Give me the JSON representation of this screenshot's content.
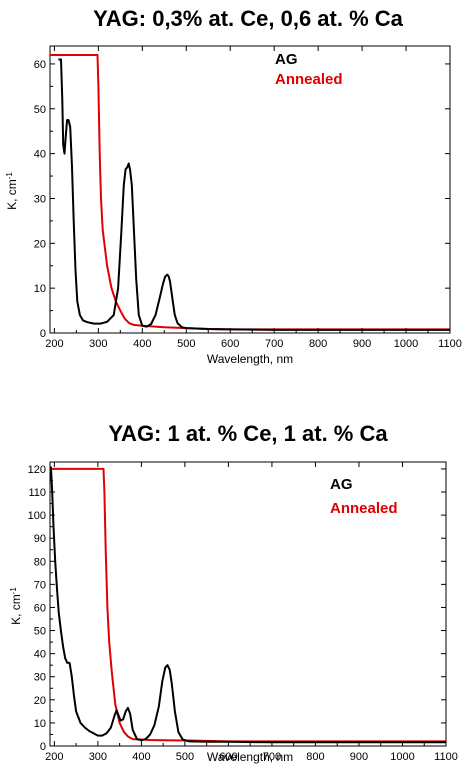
{
  "chart_data": [
    {
      "type": "line",
      "title": "YAG: 0,3% at. Ce, 0,6 at. % Ca",
      "xlabel": "Wavelength, nm",
      "ylabel_main": "K, cm",
      "ylabel_sup": "-1",
      "xlim": [
        190,
        1100
      ],
      "ylim": [
        0,
        64
      ],
      "xticks": [
        200,
        300,
        400,
        500,
        600,
        700,
        800,
        900,
        1000,
        1100
      ],
      "yticks": [
        0,
        10,
        20,
        30,
        40,
        50,
        60
      ],
      "legend_position": "top-right",
      "series": [
        {
          "name": "AG",
          "color": "#000000",
          "x": [
            209,
            212,
            215,
            218,
            220,
            223,
            226,
            229,
            232,
            236,
            240,
            244,
            248,
            252,
            258,
            265,
            275,
            290,
            305,
            320,
            335,
            345,
            352,
            358,
            362,
            366,
            369,
            372,
            376,
            380,
            386,
            392,
            400,
            410,
            420,
            430,
            440,
            447,
            452,
            457,
            460,
            463,
            468,
            474,
            480,
            490,
            500,
            550,
            600,
            700,
            800,
            900,
            1000,
            1100
          ],
          "y": [
            61,
            61,
            61,
            52,
            42,
            40,
            44,
            47.5,
            47.5,
            46,
            37,
            25,
            14,
            7,
            4,
            2.8,
            2.4,
            2.1,
            2.1,
            2.5,
            4,
            10,
            22,
            33,
            36.5,
            37,
            37.8,
            36.5,
            33,
            25,
            12,
            4,
            1.6,
            1.4,
            2,
            4,
            8,
            11,
            12.6,
            13,
            12.6,
            11.5,
            8,
            4,
            2.2,
            1.3,
            1.1,
            0.9,
            0.8,
            0.7,
            0.7,
            0.7,
            0.7,
            0.7
          ]
        },
        {
          "name": "Annealed",
          "color": "#e00000",
          "x": [
            190,
            298,
            300,
            303,
            306,
            310,
            315,
            320,
            330,
            340,
            350,
            360,
            370,
            380,
            400,
            450,
            500,
            550,
            600,
            700,
            800,
            900,
            1000,
            1100
          ],
          "y": [
            62,
            62,
            55,
            40,
            30,
            23,
            19,
            15,
            10,
            7,
            5,
            3.2,
            2.2,
            1.8,
            1.6,
            1.3,
            1.1,
            0.9,
            0.8,
            0.8,
            0.8,
            0.8,
            0.8,
            0.8
          ]
        }
      ]
    },
    {
      "type": "line",
      "title": "YAG: 1 at. % Ce, 1 at. % Ca",
      "xlabel": "Wavelength, nm",
      "ylabel_main": "K, cm",
      "ylabel_sup": "-1",
      "xlim": [
        190,
        1100
      ],
      "ylim": [
        0,
        123
      ],
      "xticks": [
        200,
        300,
        400,
        500,
        600,
        700,
        800,
        900,
        1000,
        1100
      ],
      "yticks": [
        0,
        10,
        20,
        30,
        40,
        50,
        60,
        70,
        80,
        90,
        100,
        110,
        120
      ],
      "legend_position": "top-right",
      "series": [
        {
          "name": "AG",
          "color": "#000000",
          "x": [
            192,
            195,
            198,
            202,
            206,
            210,
            215,
            220,
            225,
            230,
            235,
            240,
            245,
            250,
            260,
            270,
            280,
            290,
            300,
            310,
            320,
            330,
            338,
            343,
            348,
            352,
            358,
            364,
            369,
            374,
            380,
            390,
            400,
            410,
            420,
            430,
            440,
            448,
            455,
            460,
            465,
            470,
            477,
            485,
            495,
            510,
            550,
            600,
            700,
            800,
            900,
            1000,
            1100
          ],
          "y": [
            121,
            110,
            95,
            80,
            68,
            58,
            50,
            43,
            38,
            36,
            36,
            30,
            22,
            15,
            10,
            8,
            6.5,
            5.5,
            4.5,
            4.5,
            5.5,
            8,
            13,
            15.5,
            13,
            11,
            11.5,
            15,
            16.5,
            14,
            7,
            3,
            2.5,
            3,
            5,
            9,
            17,
            28,
            34,
            35,
            33,
            27,
            15,
            6,
            2.8,
            2,
            1.8,
            1.8,
            1.6,
            1.6,
            1.6,
            1.6,
            1.6
          ]
        },
        {
          "name": "Annealed",
          "color": "#e00000",
          "x": [
            192,
            313,
            315,
            318,
            322,
            326,
            332,
            340,
            350,
            360,
            370,
            380,
            400,
            420,
            450,
            500,
            550,
            600,
            700,
            800,
            900,
            1000,
            1100
          ],
          "y": [
            120,
            120,
            110,
            85,
            60,
            45,
            32,
            18,
            10,
            6,
            4,
            3,
            2.8,
            2.6,
            2.5,
            2.4,
            2.2,
            2,
            2,
            2,
            2,
            2,
            2
          ]
        }
      ]
    }
  ]
}
